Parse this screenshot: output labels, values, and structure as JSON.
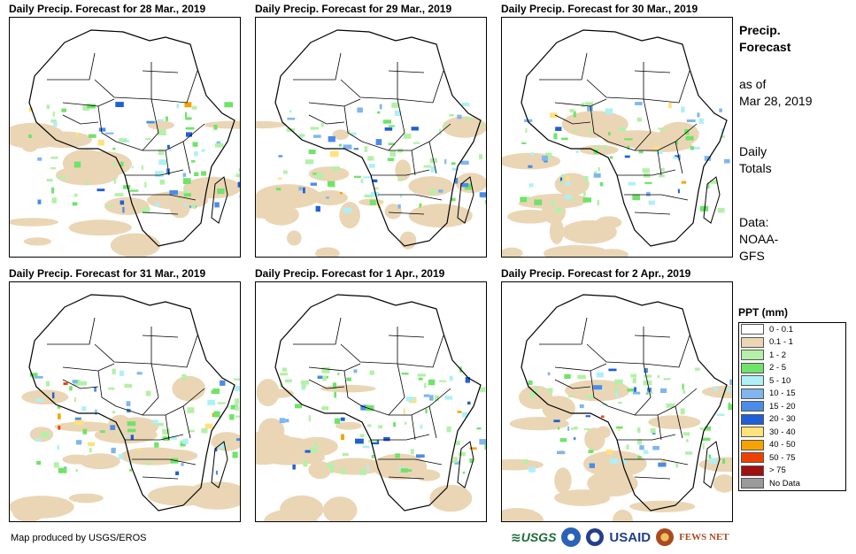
{
  "panels": [
    {
      "title": "Daily Precip. Forecast for 28 Mar., 2019"
    },
    {
      "title": "Daily Precip. Forecast for 29 Mar., 2019"
    },
    {
      "title": "Daily Precip. Forecast for 30 Mar., 2019"
    },
    {
      "title": "Daily Precip. Forecast for 31 Mar., 2019"
    },
    {
      "title": "Daily Precip. Forecast for 1 Apr., 2019"
    },
    {
      "title": "Daily Precip. Forecast for 2 Apr., 2019"
    }
  ],
  "side": {
    "heading_line1": "Precip.",
    "heading_line2": "Forecast",
    "asof_line1": "as of",
    "asof_line2": "Mar 28, 2019",
    "totals_line1": "Daily",
    "totals_line2": "Totals",
    "data_line1": "Data:",
    "data_line2": "NOAA-",
    "data_line3": "GFS"
  },
  "legend": {
    "title": "PPT (mm)",
    "items": [
      {
        "label": "0 - 0.1",
        "color": "#ffffff"
      },
      {
        "label": "0.1 - 1",
        "color": "#ead6b5"
      },
      {
        "label": "1 - 2",
        "color": "#b4f0a8"
      },
      {
        "label": "2 - 5",
        "color": "#6fe36a"
      },
      {
        "label": "5 - 10",
        "color": "#aef0f5"
      },
      {
        "label": "10 - 15",
        "color": "#7fb6ee"
      },
      {
        "label": "15 - 20",
        "color": "#4a8ce8"
      },
      {
        "label": "20 - 30",
        "color": "#1f5fd8"
      },
      {
        "label": "30 - 40",
        "color": "#ffe27a"
      },
      {
        "label": "40 - 50",
        "color": "#f5a300"
      },
      {
        "label": "50 - 75",
        "color": "#f04000"
      },
      {
        "label": "> 75",
        "color": "#a01010"
      },
      {
        "label": "No Data",
        "color": "#9a9a9a"
      }
    ]
  },
  "footer": {
    "credit": "Map produced by USGS/EROS"
  },
  "logos": {
    "usgs": "≋USGS",
    "usaid": "USAID",
    "fews": "FEWS NET"
  }
}
